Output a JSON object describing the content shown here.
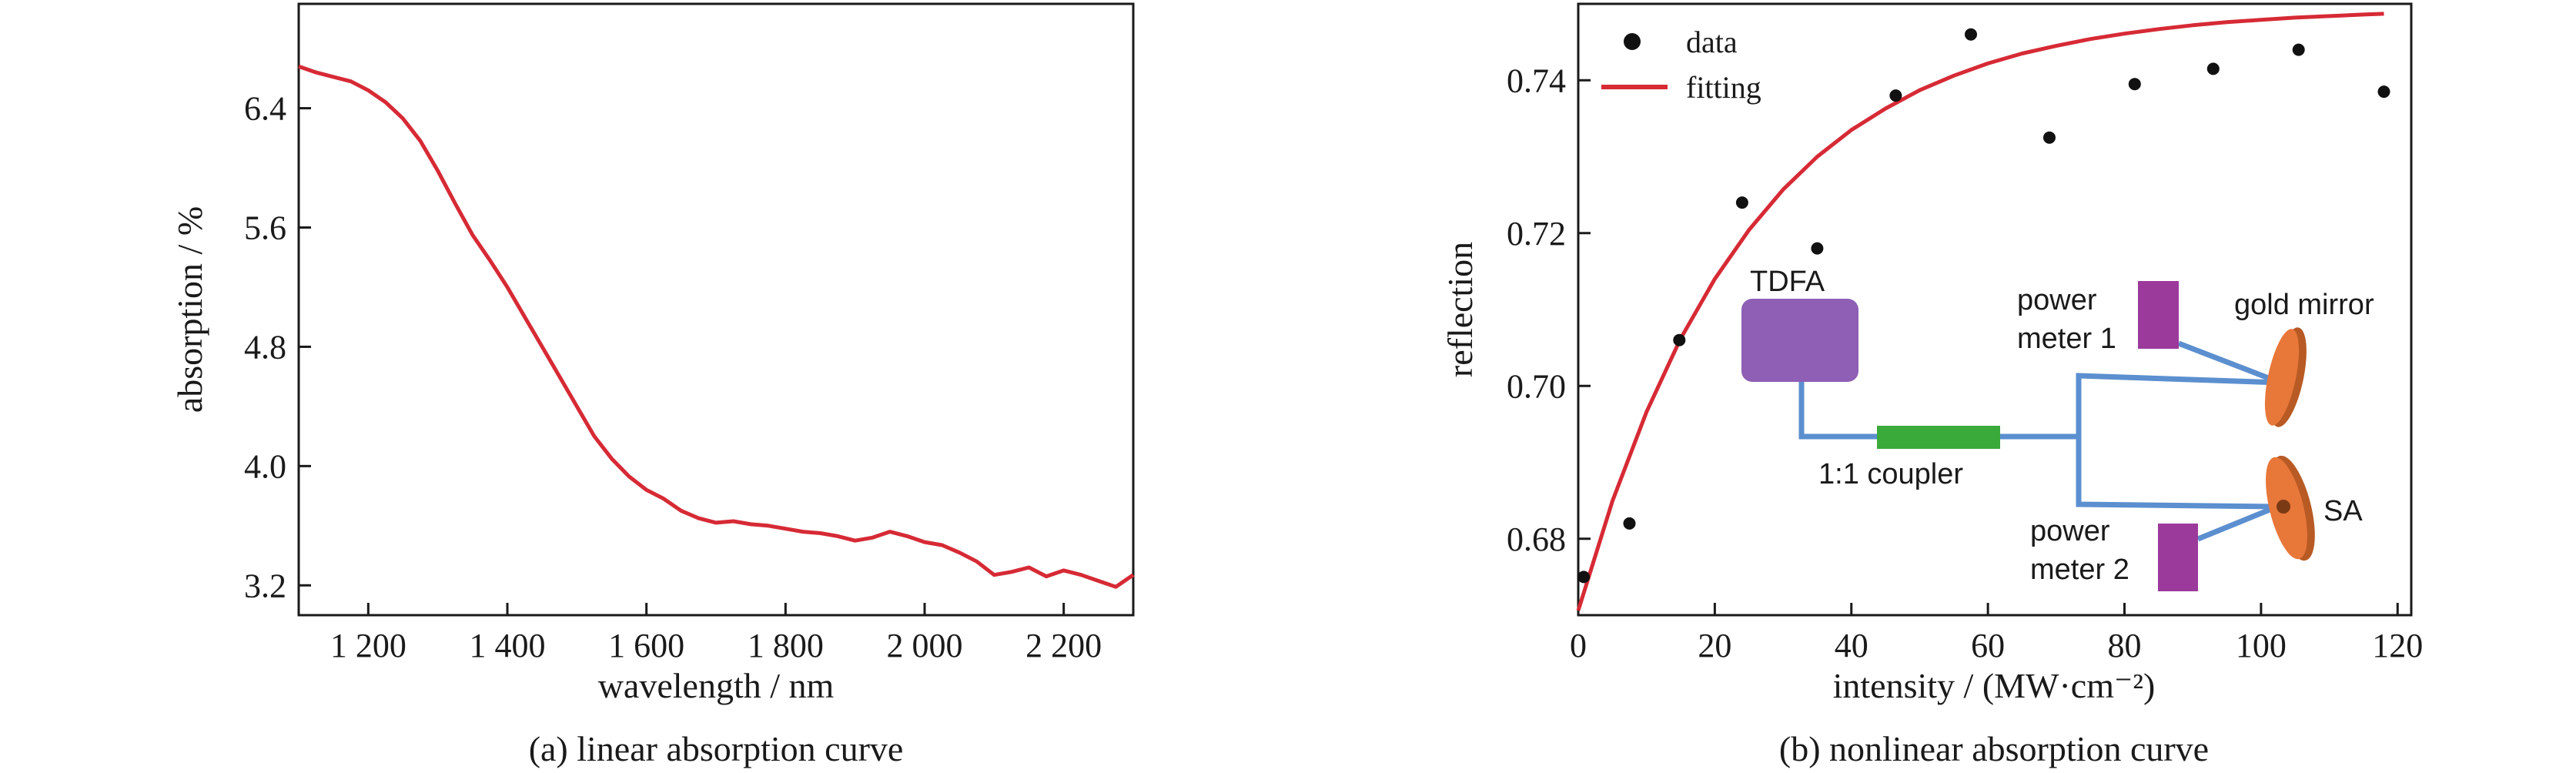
{
  "chart_data": [
    {
      "type": "line",
      "caption": "(a) linear absorption curve",
      "xlabel": "wavelength / nm",
      "ylabel": "absorption / %",
      "xlim": [
        1100,
        2300
      ],
      "ylim": [
        3.0,
        7.1
      ],
      "xticks": [
        1200,
        1400,
        1600,
        1800,
        2000,
        2200
      ],
      "xtick_labels": [
        "1 200",
        "1 400",
        "1 600",
        "1 800",
        "2 000",
        "2 200"
      ],
      "yticks": [
        3.2,
        4.0,
        4.8,
        5.6,
        6.4
      ],
      "ytick_labels": [
        "3.2",
        "4.0",
        "4.8",
        "5.6",
        "6.4"
      ],
      "grid": false,
      "line_color": "#d62a35",
      "x": [
        1100,
        1125,
        1150,
        1175,
        1200,
        1225,
        1250,
        1275,
        1300,
        1325,
        1350,
        1375,
        1400,
        1425,
        1450,
        1475,
        1500,
        1525,
        1550,
        1575,
        1600,
        1625,
        1650,
        1675,
        1700,
        1725,
        1750,
        1775,
        1800,
        1825,
        1850,
        1875,
        1900,
        1925,
        1950,
        1975,
        2000,
        2025,
        2050,
        2075,
        2100,
        2125,
        2150,
        2175,
        2200,
        2225,
        2250,
        2275,
        2300
      ],
      "y": [
        6.68,
        6.64,
        6.61,
        6.58,
        6.52,
        6.44,
        6.33,
        6.18,
        5.98,
        5.76,
        5.55,
        5.38,
        5.2,
        5.0,
        4.8,
        4.6,
        4.4,
        4.2,
        4.05,
        3.93,
        3.84,
        3.78,
        3.7,
        3.65,
        3.62,
        3.63,
        3.61,
        3.6,
        3.58,
        3.56,
        3.55,
        3.53,
        3.5,
        3.52,
        3.56,
        3.53,
        3.49,
        3.47,
        3.42,
        3.36,
        3.27,
        3.29,
        3.32,
        3.26,
        3.3,
        3.27,
        3.23,
        3.19,
        3.27
      ]
    },
    {
      "type": "scatter",
      "caption": "(b) nonlinear absorption curve",
      "xlabel": "intensity / (MW·cm⁻²)",
      "ylabel": "reflection",
      "xlim": [
        0,
        122
      ],
      "ylim": [
        0.67,
        0.75
      ],
      "xticks": [
        0,
        20,
        40,
        60,
        80,
        100,
        120
      ],
      "xtick_labels": [
        "0",
        "20",
        "40",
        "60",
        "80",
        "100",
        "120"
      ],
      "yticks": [
        0.68,
        0.7,
        0.72,
        0.74
      ],
      "ytick_labels": [
        "0.68",
        "0.70",
        "0.72",
        "0.74"
      ],
      "grid": false,
      "legend": {
        "position": "top-left",
        "entries": [
          "data",
          "fitting"
        ]
      },
      "series": [
        {
          "name": "data",
          "kind": "scatter",
          "color": "#111111",
          "x": [
            0.8,
            7.5,
            14.8,
            24,
            35,
            46.5,
            57.5,
            69,
            81.5,
            93,
            105.5,
            118
          ],
          "y": [
            0.675,
            0.682,
            0.706,
            0.724,
            0.718,
            0.738,
            0.746,
            0.7325,
            0.7395,
            0.7415,
            0.744,
            0.7385
          ]
        },
        {
          "name": "fitting",
          "kind": "line",
          "color": "#d62a35",
          "x": [
            0,
            5,
            10,
            15,
            20,
            25,
            30,
            35,
            40,
            45,
            50,
            55,
            60,
            65,
            70,
            75,
            80,
            85,
            90,
            95,
            100,
            105,
            110,
            115,
            118
          ],
          "y": [
            0.6706,
            0.6849,
            0.6966,
            0.7062,
            0.714,
            0.7204,
            0.7257,
            0.73,
            0.7335,
            0.7363,
            0.7387,
            0.7406,
            0.7422,
            0.7435,
            0.7445,
            0.7454,
            0.7461,
            0.7467,
            0.7472,
            0.7476,
            0.7479,
            0.7482,
            0.7484,
            0.7486,
            0.7487
          ]
        }
      ],
      "inset_diagram": {
        "labels": {
          "tdfa": "TDFA",
          "coupler": "1:1 coupler",
          "power_meter_1_line1": "power",
          "power_meter_1_line2": "meter 1",
          "power_meter_2_line1": "power",
          "power_meter_2_line2": "meter 2",
          "gold_mirror": "gold mirror",
          "sa": "SA"
        },
        "colors": {
          "tdfa": "#8e5fb4",
          "coupler": "#3aaa3a",
          "fiber": "#5b8fcf",
          "power_meter": "#9b3a9b",
          "mirror": "#e8773a"
        }
      }
    }
  ]
}
